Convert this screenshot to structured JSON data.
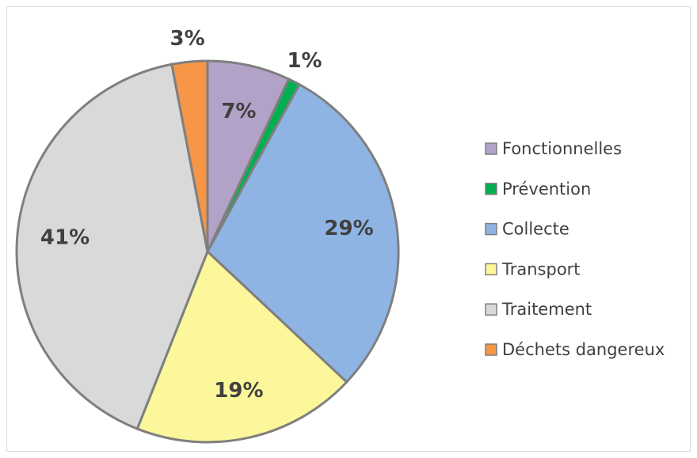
{
  "chart_data": {
    "type": "pie",
    "categories": [
      "Fonctionnelles",
      "Prévention",
      "Collecte",
      "Transport",
      "Traitement",
      "Déchets dangereux"
    ],
    "values": [
      7,
      1,
      29,
      19,
      41,
      3
    ],
    "value_labels": [
      "7%",
      "1%",
      "29%",
      "19%",
      "41%",
      "3%"
    ],
    "colors": [
      "#b3a2c7",
      "#00b050",
      "#8eb4e3",
      "#fbf79a",
      "#d9d9d9",
      "#f79646"
    ],
    "legend": "right"
  }
}
